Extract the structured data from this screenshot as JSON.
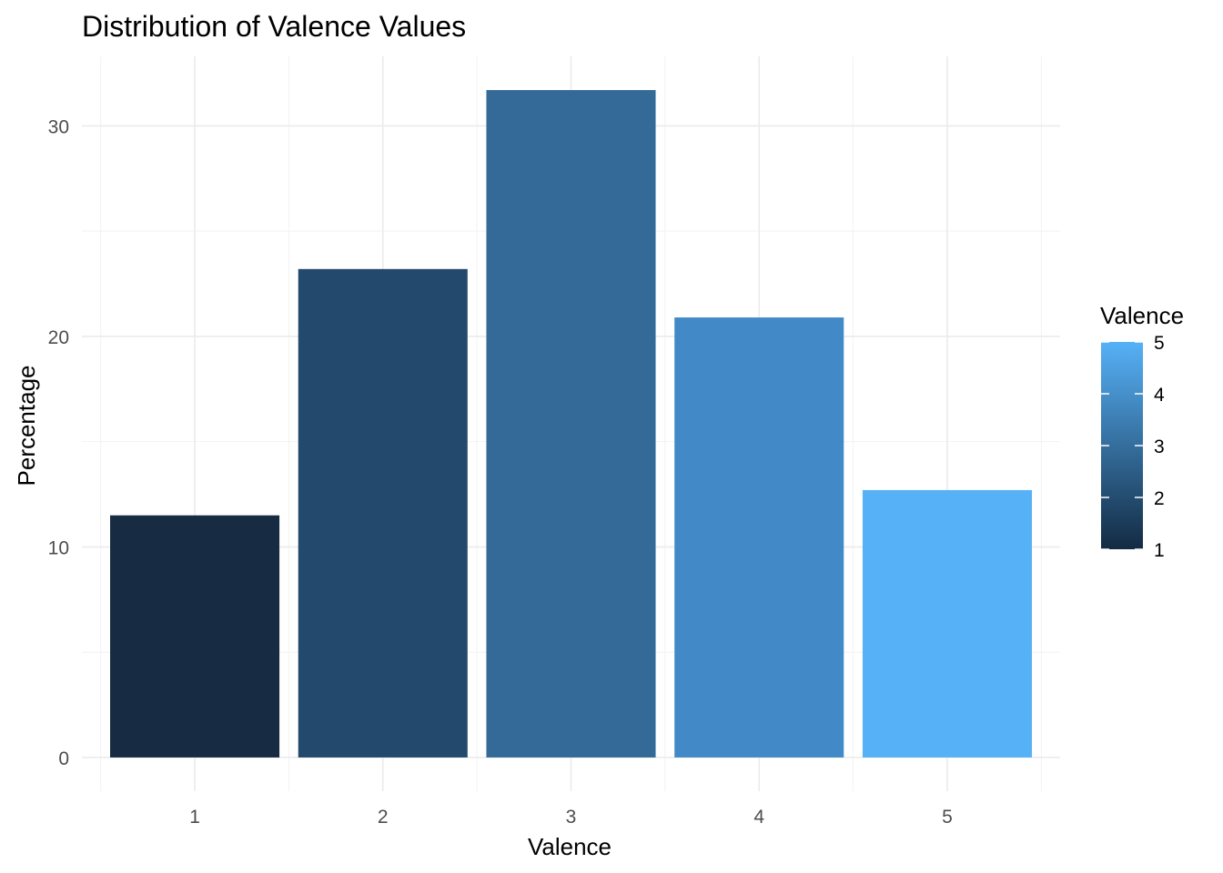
{
  "chart_data": {
    "type": "bar",
    "title": "Distribution of Valence Values",
    "xlabel": "Valence",
    "ylabel": "Percentage",
    "categories": [
      "1",
      "2",
      "3",
      "4",
      "5"
    ],
    "values": [
      11.5,
      23.2,
      31.7,
      20.9,
      12.7
    ],
    "ylim": [
      -1.6,
      33.3
    ],
    "yticks": [
      0,
      10,
      20,
      30
    ],
    "grid": true,
    "legend": {
      "title": "Valence",
      "position": "right",
      "ticks": [
        "1",
        "2",
        "3",
        "4",
        "5"
      ],
      "low_color": "#132B43",
      "high_color": "#56B1F7"
    },
    "colors": [
      "#172c43",
      "#234a6c",
      "#336a98",
      "#428ac7",
      "#56b1f7"
    ]
  }
}
